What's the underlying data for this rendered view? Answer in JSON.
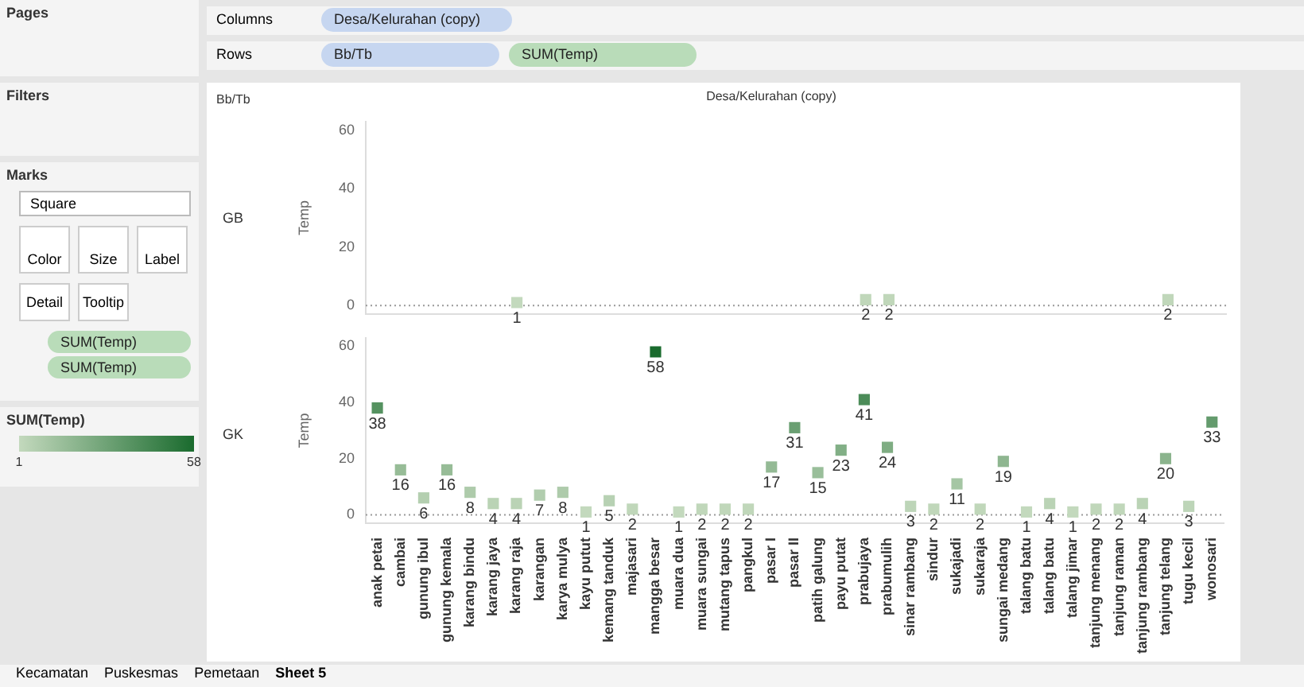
{
  "chart_data": [
    {
      "type": "scatter",
      "xlabel": "Desa/Kelurahan (copy)",
      "ylabel": "Temp",
      "annotations": [
        "Bb/Tb"
      ],
      "values": [
        null,
        null,
        null,
        null,
        null,
        null,
        1,
        null,
        null,
        null,
        null,
        null,
        null,
        null,
        null,
        null,
        null,
        null,
        null,
        null,
        null,
        2,
        2,
        null,
        null,
        null,
        null,
        null,
        null,
        null,
        null,
        null,
        null,
        null,
        2,
        null,
        null
      ],
      "ylim": [
        -3,
        63
      ],
      "yticks": [
        0,
        20,
        40,
        60
      ],
      "marker": "square",
      "data_labels": true,
      "grid": false,
      "legend": false,
      "tick_labels": "y",
      "ref_lines": [
        {
          "axis": "y",
          "value": 0,
          "color": "#999999",
          "line_style": "dotted"
        }
      ]
    },
    {
      "type": "scatter",
      "ylabel": "Temp",
      "categories": [
        "anak petai",
        "cambai",
        "gunung ibul",
        "gunung kemala",
        "karang bindu",
        "karang jaya",
        "karang raja",
        "karangan",
        "karya mulya",
        "kayu putut",
        "kemang tanduk",
        "majasari",
        "mangga besar",
        "muara dua",
        "muara sungai",
        "mutang tapus",
        "pangkul",
        "pasar I",
        "pasar II",
        "patih galung",
        "payu putat",
        "prabujaya",
        "prabumulih",
        "sinar rambang",
        "sindur",
        "sukajadi",
        "sukaraja",
        "sungai medang",
        "talang batu",
        "talang batu",
        "talang jimar",
        "tanjung menang",
        "tanjung raman",
        "tanjung rambang",
        "tanjung telang",
        "tugu kecil",
        "wonosari"
      ],
      "values": [
        38,
        16,
        6,
        16,
        8,
        4,
        4,
        7,
        8,
        1,
        5,
        2,
        58,
        1,
        2,
        2,
        2,
        17,
        31,
        15,
        23,
        41,
        24,
        3,
        2,
        11,
        2,
        19,
        1,
        4,
        1,
        2,
        2,
        4,
        20,
        3,
        33
      ],
      "clim": [
        1,
        58
      ],
      "cticks": [
        1,
        58
      ],
      "clabel": "SUM(Temp)",
      "ylim": [
        -3,
        63
      ],
      "yticks": [
        0,
        20,
        40,
        60
      ],
      "marker": "square",
      "data_labels": true,
      "grid": false,
      "legend": false,
      "ref_lines": [
        {
          "axis": "y",
          "value": 0,
          "color": "#999999",
          "line_style": "dotted"
        }
      ]
    },
    {
      "type": "other",
      "annotations": [
        "Pages",
        "Columns",
        "Rows",
        "Filters",
        "Marks",
        "Square",
        "Color",
        "Size",
        "Label",
        "Detail",
        "Tooltip",
        "SUM(Temp)",
        "SUM(Temp)",
        "Desa/Kelurahan (copy)",
        "Bb/Tb",
        "SUM(Temp)",
        "Kecamatan",
        "Puskesmas",
        "Pemetaan",
        "Sheet 5",
        "GB",
        "GK"
      ]
    }
  ]
}
